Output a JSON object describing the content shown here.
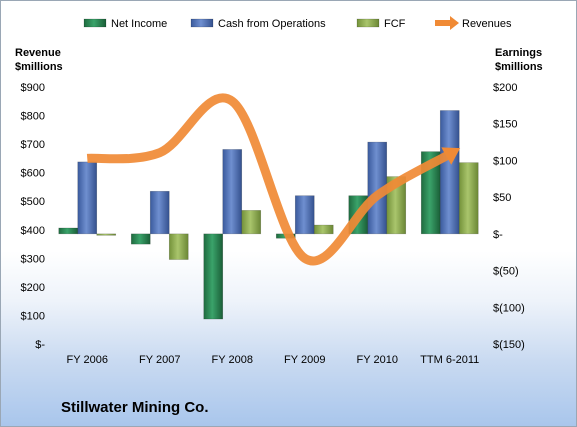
{
  "chart_data": {
    "type": "bar",
    "title": "",
    "categories": [
      "FY 2006",
      "FY 2007",
      "FY 2008",
      "FY 2009",
      "FY 2010",
      "TTM 6-2011"
    ],
    "series": [
      {
        "name": "Net Income",
        "axis": "right",
        "chart_type": "bar",
        "color": "#2e8b57",
        "values": [
          8,
          -14,
          -116,
          -6,
          52,
          112
        ]
      },
      {
        "name": "Cash from Operations",
        "axis": "right",
        "chart_type": "bar",
        "color": "#4f6fb0",
        "values": [
          98,
          58,
          115,
          52,
          125,
          168
        ]
      },
      {
        "name": "FCF",
        "axis": "right",
        "chart_type": "bar",
        "color": "#8fae4f",
        "values": [
          -2,
          -35,
          32,
          12,
          78,
          97
        ]
      },
      {
        "name": "Revenues",
        "axis": "left",
        "chart_type": "line",
        "color": "#f08a35",
        "values": [
          650,
          670,
          850,
          300,
          520,
          665
        ]
      }
    ],
    "left_axis": {
      "label_line1": "Revenue",
      "label_line2": "$millions",
      "ylim": [
        0,
        900
      ],
      "ticks": [
        0,
        100,
        200,
        300,
        400,
        500,
        600,
        700,
        800,
        900
      ],
      "tick_labels": [
        "$-",
        "$100",
        "$200",
        "$300",
        "$400",
        "$500",
        "$600",
        "$700",
        "$800",
        "$900"
      ]
    },
    "right_axis": {
      "label_line1": "Earnings",
      "label_line2": "$millions",
      "ylim": [
        -150,
        200
      ],
      "ticks": [
        -150,
        -100,
        -50,
        0,
        50,
        100,
        150,
        200
      ],
      "tick_labels": [
        "$(150)",
        "$(100)",
        "$(50)",
        "$-",
        "$50",
        "$100",
        "$150",
        "$200"
      ]
    },
    "grid": false,
    "legend_position": "top"
  },
  "footer": {
    "company": "Stillwater Mining Co."
  }
}
